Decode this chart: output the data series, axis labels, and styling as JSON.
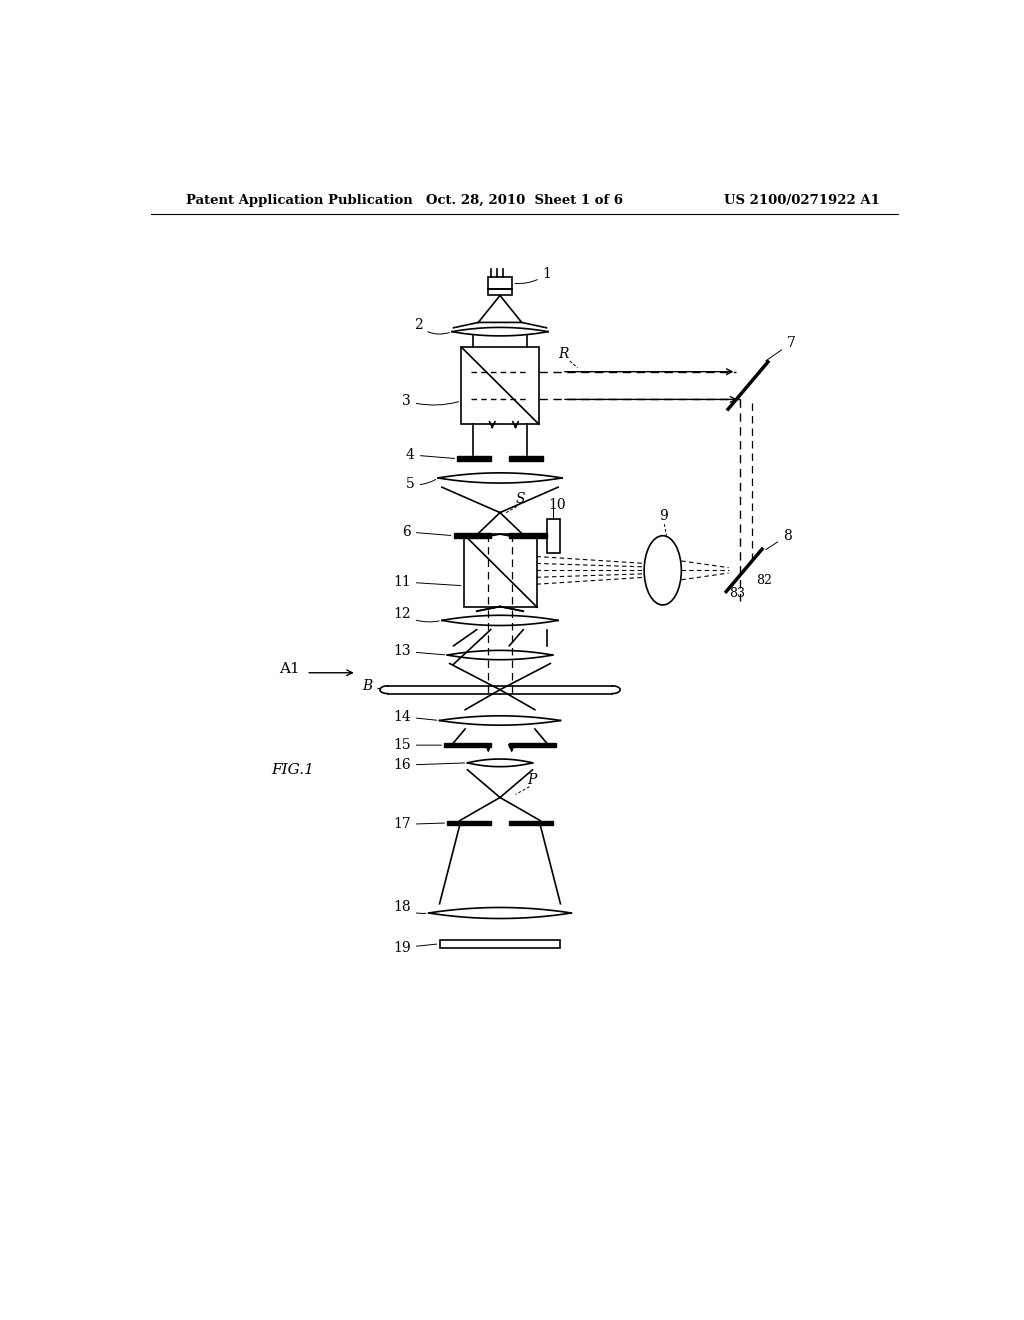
{
  "bg_color": "#ffffff",
  "header_left": "Patent Application Publication",
  "header_mid": "Oct. 28, 2010  Sheet 1 of 6",
  "header_right": "US 2100/0271922 A1",
  "fig_label": "FIG.1",
  "a1_label": "A1"
}
